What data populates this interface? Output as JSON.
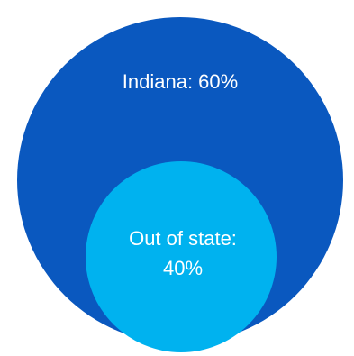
{
  "chart_data": {
    "type": "nested-circle",
    "categories": [
      "Indiana",
      "Out of state"
    ],
    "values": [
      60,
      40
    ],
    "labels": [
      "Indiana: 60%",
      "Out of state:",
      "40%"
    ],
    "colors": [
      "#0a58bf",
      "#00b2ef"
    ]
  }
}
